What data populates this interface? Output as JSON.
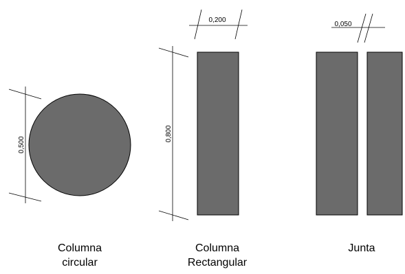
{
  "dimensions": {
    "circle_diameter": "0,500",
    "rect_width": "0,200",
    "rect_height": "0,800",
    "joint_gap": "0,050"
  },
  "captions": {
    "circular": [
      "Columna",
      "circular"
    ],
    "rectangular": [
      "Columna",
      "Rectangular"
    ],
    "joint": [
      "Junta"
    ]
  },
  "colors": {
    "fill": "#6b6b6b",
    "line": "#000000"
  }
}
